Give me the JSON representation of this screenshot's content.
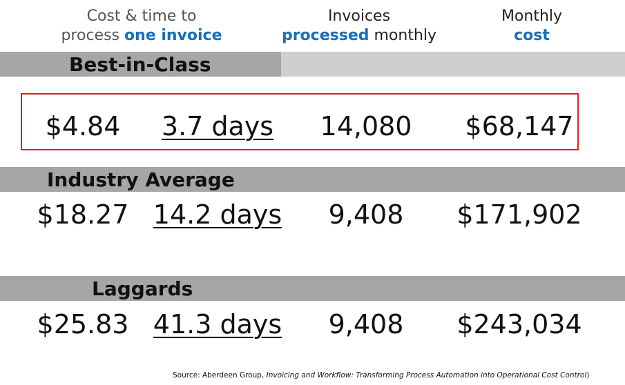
{
  "header": {
    "columns": [
      {
        "line1": "Cost & time to",
        "line2": "process",
        "line2_highlight": "one invoice"
      },
      {
        "line1": "Invoices",
        "line2_highlight": "processed",
        "line2": "monthly"
      },
      {
        "line1": "Monthly",
        "line2_highlight": "cost"
      }
    ]
  },
  "table": {
    "rows": [
      {
        "label": "Best-in-Class",
        "values": [
          "$4.84",
          "3.7 days",
          "14,080",
          "$68,147"
        ]
      },
      {
        "label": "Industry Average",
        "values": [
          "$18.27",
          "14.2 days",
          "9,408",
          "$171,902"
        ]
      },
      {
        "label": "Laggards",
        "values": [
          "$25.83",
          "41.3 days",
          "9,408",
          "$243,034"
        ]
      }
    ]
  },
  "footer": {
    "source_prefix": "Source: Aberdeen Group,",
    "source_title": "Invoicing and Workflow: Transforming Process Automation into Operational Cost Control",
    "source_suffix": ")"
  }
}
